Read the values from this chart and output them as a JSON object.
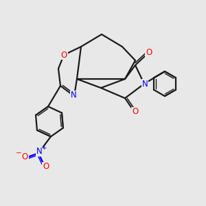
{
  "background_color": "#e8e8e8",
  "bond_color": "#1a1a1a",
  "bond_width": 1.6,
  "atom_colors": {
    "O": "#ff0000",
    "N": "#0000ff",
    "C": "#1a1a1a"
  },
  "font_size_atom": 8.5,
  "title": ""
}
